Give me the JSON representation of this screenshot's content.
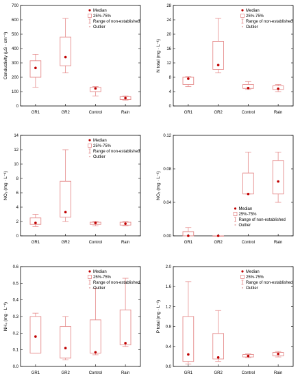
{
  "colors": {
    "box": "#e58a8a",
    "median": "#c00000",
    "axis": "#000000"
  },
  "legend": {
    "median": "Median",
    "iqr": "25%-75%",
    "range": "Range of non-established",
    "outlier": "Outlier"
  },
  "chart_data": [
    {
      "type": "box",
      "ylabel": "Conductivity (µS · cm⁻¹)",
      "ylim": [
        0,
        700
      ],
      "yticks": [
        0,
        100,
        200,
        300,
        400,
        500,
        600,
        700
      ],
      "categories": [
        "GR1",
        "GR2",
        "Control",
        "Rain"
      ],
      "boxes": [
        {
          "min": 130,
          "q1": 200,
          "median": 265,
          "q3": 315,
          "max": 360
        },
        {
          "min": 230,
          "q1": 280,
          "median": 340,
          "q3": 480,
          "max": 610
        },
        {
          "min": 70,
          "q1": 100,
          "median": 122,
          "q3": 130,
          "max": 135
        },
        {
          "min": 40,
          "q1": 45,
          "median": 55,
          "q3": 65,
          "max": 70
        }
      ],
      "legend_pos": "top-right"
    },
    {
      "type": "box",
      "ylabel": "N total (mg · L⁻¹)",
      "ylim": [
        0,
        28
      ],
      "yticks": [
        0,
        4,
        8,
        12,
        16,
        20,
        24,
        28
      ],
      "categories": [
        "GR1",
        "GR2",
        "Control",
        "Rain"
      ],
      "boxes": [
        {
          "min": 5.4,
          "q1": 6.0,
          "median": 7.6,
          "q3": 8.0,
          "max": 8.2
        },
        {
          "min": 9.2,
          "q1": 10.2,
          "median": 11.4,
          "q3": 18.0,
          "max": 24.4
        },
        {
          "min": 4.6,
          "q1": 4.9,
          "median": 5.0,
          "q3": 6.0,
          "max": 6.8
        },
        {
          "min": 4.0,
          "q1": 4.6,
          "median": 4.8,
          "q3": 5.6,
          "max": 6.0
        }
      ],
      "legend_pos": "top-right"
    },
    {
      "type": "box",
      "ylabel": "NO₃ (mg · L⁻¹)",
      "ylim": [
        0,
        14
      ],
      "yticks": [
        0,
        2,
        4,
        6,
        8,
        10,
        12,
        14
      ],
      "categories": [
        "GR1",
        "GR2",
        "Control",
        "Rain"
      ],
      "boxes": [
        {
          "min": 1.3,
          "q1": 1.6,
          "median": 1.8,
          "q3": 2.5,
          "max": 3.0
        },
        {
          "min": 2.0,
          "q1": 2.6,
          "median": 3.3,
          "q3": 7.6,
          "max": 12.0
        },
        {
          "min": 1.4,
          "q1": 1.6,
          "median": 1.8,
          "q3": 1.9,
          "max": 2.0
        },
        {
          "min": 1.4,
          "q1": 1.5,
          "median": 1.7,
          "q3": 1.9,
          "max": 2.0
        }
      ],
      "legend_pos": "top-right"
    },
    {
      "type": "box",
      "ylabel": "NO₂ (mg · L⁻¹)",
      "ylim": [
        0,
        0.12
      ],
      "yticks": [
        "0.00",
        "0.04",
        "0.08",
        "0.12"
      ],
      "categories": [
        "GR1",
        "GR2",
        "Control",
        "Rain"
      ],
      "boxes": [
        {
          "min": 0.0,
          "q1": 0.0,
          "median": 0.0,
          "q3": 0.005,
          "max": 0.01
        },
        {
          "min": 0.0,
          "q1": 0.0,
          "median": 0.0,
          "q3": 0.0,
          "max": 0.0
        },
        {
          "min": 0.05,
          "q1": 0.05,
          "median": 0.05,
          "q3": 0.075,
          "max": 0.1
        },
        {
          "min": 0.04,
          "q1": 0.05,
          "median": 0.065,
          "q3": 0.09,
          "max": 0.1
        }
      ],
      "legend_pos": "bottom-right"
    },
    {
      "type": "box",
      "ylabel": "NH₄ (mg · L⁻¹)",
      "ylim": [
        0,
        0.6
      ],
      "yticks": [
        "0.0",
        "0.1",
        "0.2",
        "0.3",
        "0.4",
        "0.5",
        "0.6"
      ],
      "categories": [
        "GR1",
        "GR2",
        "Control",
        "Rain"
      ],
      "boxes": [
        {
          "min": 0.08,
          "q1": 0.08,
          "median": 0.18,
          "q3": 0.3,
          "max": 0.32
        },
        {
          "min": 0.04,
          "q1": 0.05,
          "median": 0.11,
          "q3": 0.24,
          "max": 0.3
        },
        {
          "min": 0.07,
          "q1": 0.08,
          "median": 0.085,
          "q3": 0.28,
          "max": 0.47
        },
        {
          "min": 0.12,
          "q1": 0.13,
          "median": 0.14,
          "q3": 0.34,
          "max": 0.53
        }
      ],
      "legend_pos": "top-right"
    },
    {
      "type": "box",
      "ylabel": "P total (mg · L⁻¹)",
      "ylim": [
        0,
        2.0
      ],
      "yticks": [
        "0.0",
        "0.4",
        "0.8",
        "1.2",
        "1.6",
        "2.0"
      ],
      "categories": [
        "GR1",
        "GR2",
        "Control",
        "Rain"
      ],
      "boxes": [
        {
          "min": 0.05,
          "q1": 0.1,
          "median": 0.24,
          "q3": 1.0,
          "max": 1.7
        },
        {
          "min": 0.1,
          "q1": 0.15,
          "median": 0.18,
          "q3": 0.66,
          "max": 1.12
        },
        {
          "min": 0.17,
          "q1": 0.19,
          "median": 0.21,
          "q3": 0.24,
          "max": 0.25
        },
        {
          "min": 0.19,
          "q1": 0.21,
          "median": 0.25,
          "q3": 0.28,
          "max": 0.3
        }
      ],
      "legend_pos": "top-right"
    }
  ]
}
